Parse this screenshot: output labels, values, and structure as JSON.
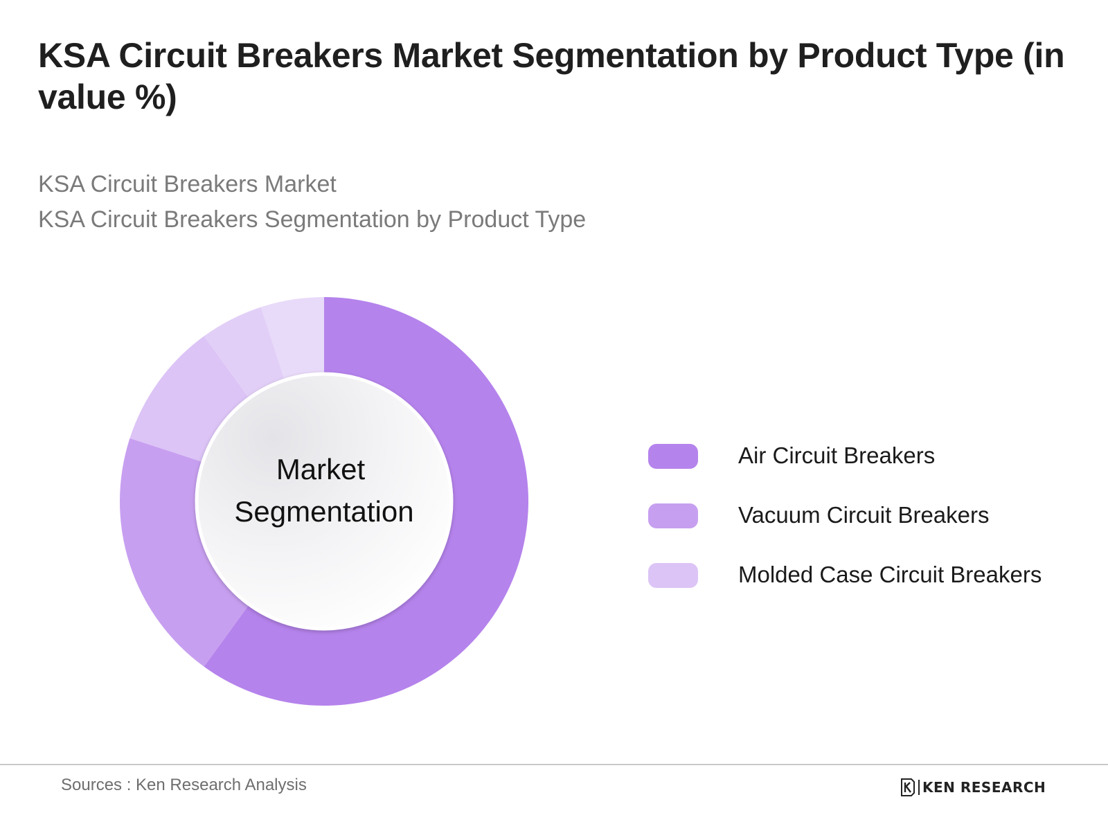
{
  "title": "KSA Circuit Breakers Market Segmentation by Product Type (in value %)",
  "subtitles": [
    "KSA Circuit Breakers Market",
    "KSA Circuit Breakers Segmentation by Product Type"
  ],
  "center_label": [
    "Market",
    "Segmentation"
  ],
  "colors": {
    "air": "#b583ec",
    "vacuum": "#c79ff0",
    "molded": "#dcc4f6",
    "molded_light": "#e8daf9"
  },
  "chart_data": {
    "type": "pie",
    "donut": true,
    "title": "KSA Circuit Breakers Market Segmentation by Product Type (in value %)",
    "legend_position": "right",
    "categories": [
      "Air Circuit Breakers",
      "Vacuum Circuit Breakers",
      "Molded Case Circuit Breakers"
    ],
    "slices": [
      {
        "label": "Air Circuit Breakers",
        "value": 60,
        "color": "#b583ec"
      },
      {
        "label": "Vacuum Circuit Breakers",
        "value": 20,
        "color": "#c79ff0"
      },
      {
        "label": "Molded Case Circuit Breakers",
        "value": 10,
        "color": "#dcc4f6"
      },
      {
        "label": "",
        "value": 5,
        "color": "#e2cff7"
      },
      {
        "label": "",
        "value": 5,
        "color": "#e8daf9"
      }
    ]
  },
  "legend": [
    {
      "label": "Air Circuit Breakers",
      "color": "#b583ec"
    },
    {
      "label": "Vacuum Circuit Breakers",
      "color": "#c79ff0"
    },
    {
      "label": "Molded Case Circuit Breakers",
      "color": "#dcc4f6"
    }
  ],
  "footer": {
    "source": "Sources : Ken Research Analysis",
    "brand": "KEN RESEARCH"
  }
}
